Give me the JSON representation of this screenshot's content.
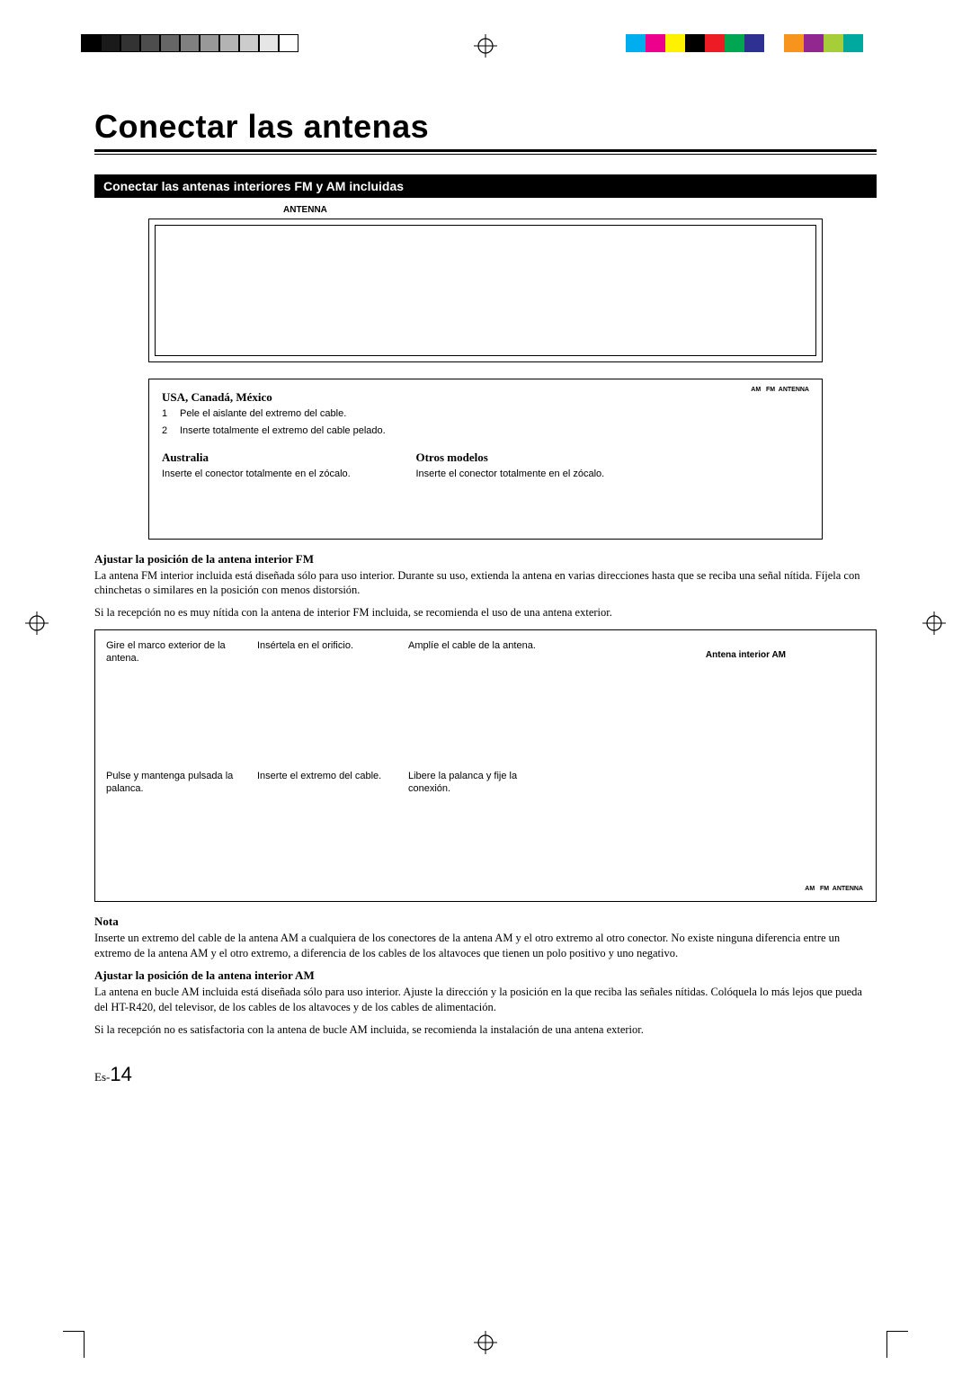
{
  "colors": {
    "bar1": [
      "#000000",
      "#1a1a1a",
      "#333333",
      "#4d4d4d",
      "#666666",
      "#808080",
      "#999999",
      "#b3b3b3",
      "#cccccc",
      "#e6e6e6",
      "#ffffff"
    ],
    "bar2": [
      "#00aeef",
      "#ec008c",
      "#fff200",
      "#000000",
      "#ed1c24",
      "#00a651",
      "#2e3192",
      "#ffffff",
      "#f7941d",
      "#92278f",
      "#a6ce39",
      "#00a99d"
    ]
  },
  "title": "Conectar las antenas",
  "section_heading": "Conectar las antenas interiores FM y AM incluidas",
  "antenna_label": "ANTENNA",
  "conn": {
    "usa_h": "USA, Canadá, México",
    "usa_steps": [
      {
        "n": "1",
        "t": "Pele el aislante del extremo del cable."
      },
      {
        "n": "2",
        "t": "Inserte totalmente el extremo del cable pelado."
      }
    ],
    "aus_h": "Australia",
    "aus_p": "Inserte el conector totalmente en el zócalo.",
    "other_h": "Otros modelos",
    "other_p": "Inserte el conector totalmente en el zócalo.",
    "terminal": "ANTENNA"
  },
  "fm": {
    "h": "Ajustar la posición de la antena interior FM",
    "p1": "La antena FM interior incluida está diseñada sólo para uso interior. Durante su uso, extienda la antena en varias direcciones hasta que se reciba una señal nítida. Fíjela con chinchetas o similares en la posición con menos distorsión.",
    "p2": "Si la recepción no es muy nítida con la antena de interior FM incluida, se recomienda el uso de una antena exterior."
  },
  "am_box": {
    "cells_row1": [
      "Gire el marco exterior de la antena.",
      "Insértela en el orificio.",
      "Amplíe el cable de la antena."
    ],
    "cells_row2": [
      "Pulse y mantenga pulsada la palanca.",
      "Inserte el extremo del cable.",
      "Libere la palanca y fije la conexión."
    ],
    "label": "Antena interior AM",
    "terminal": "ANTENNA"
  },
  "nota_h": "Nota",
  "nota_p": "Inserte un extremo del cable de la antena AM a cualquiera de los conectores de la antena AM y el otro extremo al otro conector. No existe ninguna diferencia entre un extremo de la antena AM y el otro extremo, a diferencia de los cables de los altavoces que tienen un polo positivo y uno negativo.",
  "am": {
    "h": "Ajustar la posición de la antena interior AM",
    "p1": "La antena en bucle AM incluida está diseñada sólo para uso interior. Ajuste la dirección y la posición en la que reciba las señales nítidas. Colóquela lo más lejos que pueda del HT-R420, del televisor, de los cables de los altavoces y de los cables de alimentación.",
    "p2": "Si la recepción no es satisfactoria con la antena de bucle AM incluida, se recomienda la instalación de una antena exterior."
  },
  "page_prefix": "Es-",
  "page_num": "14"
}
